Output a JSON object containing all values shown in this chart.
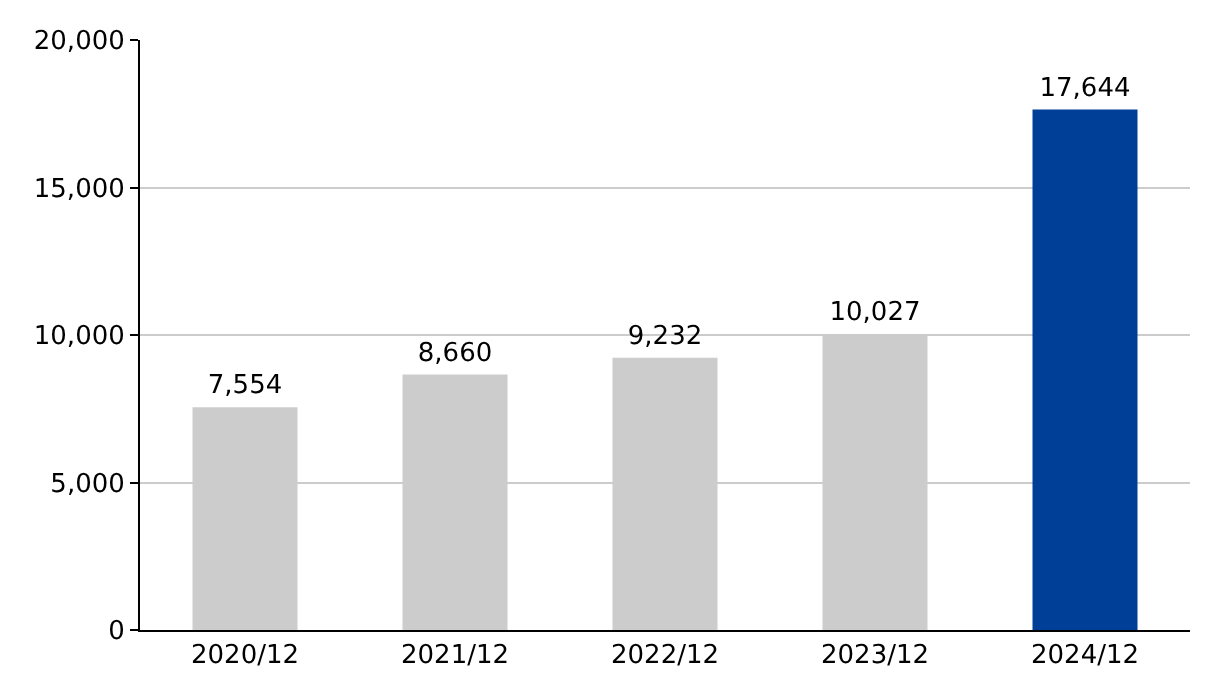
{
  "chart_data": {
    "type": "bar",
    "categories": [
      "2020/12",
      "2021/12",
      "2022/12",
      "2023/12",
      "2024/12"
    ],
    "values": [
      7554,
      8660,
      9232,
      10027,
      17644
    ],
    "colors": [
      "#cccccc",
      "#cccccc",
      "#cccccc",
      "#cccccc",
      "#003f98"
    ],
    "value_labels": [
      "7,554",
      "8,660",
      "9,232",
      "10,027",
      "17,644"
    ],
    "ylim": [
      0,
      20000
    ],
    "yticks": [
      {
        "value": 0,
        "label": "0"
      },
      {
        "value": 5000,
        "label": "5,000"
      },
      {
        "value": 10000,
        "label": "10,000"
      },
      {
        "value": 15000,
        "label": "15,000"
      },
      {
        "value": 20000,
        "label": "20,000"
      }
    ],
    "grid": "y"
  }
}
